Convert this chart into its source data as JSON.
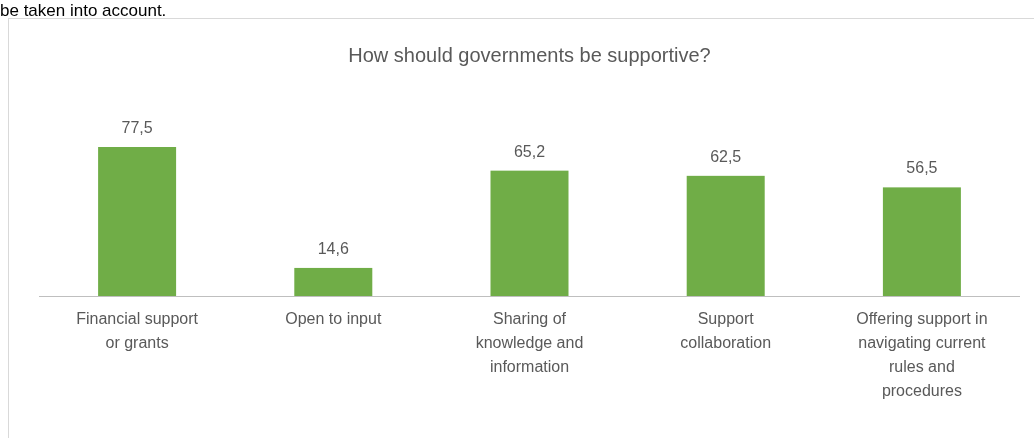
{
  "chart_data": {
    "type": "bar",
    "title": "How should governments be supportive?",
    "annotations": [
      "be taken into account."
    ],
    "categories": [
      "Financial support or grants",
      "Open to input",
      "Sharing of knowledge and information",
      "Support collaboration",
      "Offering support in navigating current rules and procedures"
    ],
    "values": [
      77.5,
      14.6,
      65.2,
      62.5,
      56.5
    ],
    "color": "#70ad47",
    "value_labels": [
      "77,5",
      "14,6",
      "65,2",
      "62,5",
      "56,5"
    ]
  }
}
